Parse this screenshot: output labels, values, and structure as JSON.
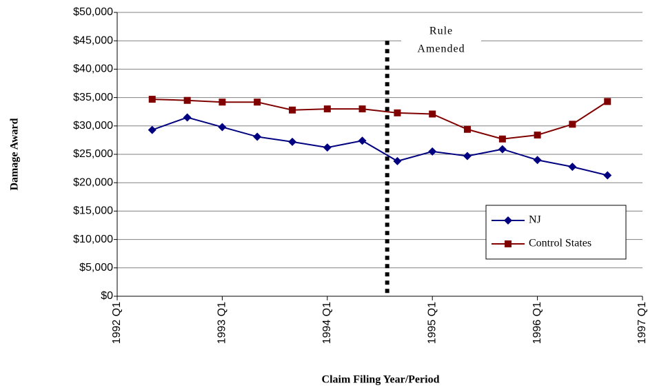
{
  "chart_data": {
    "type": "line",
    "x_label": "Claim Filing Year/Period",
    "y_label": "Damage Award",
    "x": [
      1992.333,
      1992.667,
      1993,
      1993.333,
      1993.667,
      1994,
      1994.333,
      1994.667,
      1995,
      1995.333,
      1995.667,
      1996,
      1996.333,
      1996.667
    ],
    "series": [
      {
        "name": "NJ",
        "color": "#000080",
        "marker": "diamond",
        "values": [
          29300,
          31500,
          29800,
          28100,
          27200,
          26200,
          27400,
          23800,
          25500,
          24700,
          25900,
          24000,
          22800,
          21300
        ]
      },
      {
        "name": "Control States",
        "color": "#800000",
        "marker": "square",
        "values": [
          34700,
          34500,
          34200,
          34200,
          32800,
          33000,
          33000,
          32300,
          32100,
          29400,
          27700,
          28400,
          30300,
          34300
        ]
      }
    ],
    "xlim": [
      1992,
      1997
    ],
    "xticks": [
      {
        "value": 1992,
        "label": "1992 Q1"
      },
      {
        "value": 1993,
        "label": "1993 Q1"
      },
      {
        "value": 1994,
        "label": "1994 Q1"
      },
      {
        "value": 1995,
        "label": "1995 Q1"
      },
      {
        "value": 1996,
        "label": "1996 Q1"
      },
      {
        "value": 1997,
        "label": "1997 Q1"
      }
    ],
    "ylim": [
      0,
      50000
    ],
    "yticks": [
      {
        "value": 0,
        "label": "$0"
      },
      {
        "value": 5000,
        "label": "$5,000"
      },
      {
        "value": 10000,
        "label": "$10,000"
      },
      {
        "value": 15000,
        "label": "$15,000"
      },
      {
        "value": 20000,
        "label": "$20,000"
      },
      {
        "value": 25000,
        "label": "$25,000"
      },
      {
        "value": 30000,
        "label": "$30,000"
      },
      {
        "value": 35000,
        "label": "$35,000"
      },
      {
        "value": 40000,
        "label": "$40,000"
      },
      {
        "value": 45000,
        "label": "$45,000"
      },
      {
        "value": 50000,
        "label": "$50,000"
      }
    ],
    "grid": true,
    "legend": "right",
    "annotation": {
      "lines": [
        "Rule",
        "Amended"
      ],
      "x": 1994.57
    }
  }
}
